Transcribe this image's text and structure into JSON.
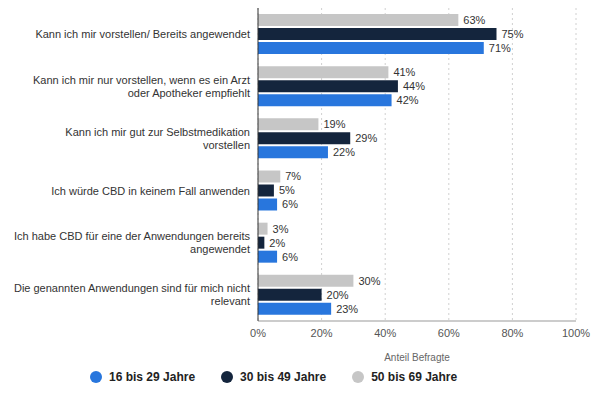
{
  "chart_data": {
    "type": "bar",
    "orientation": "horizontal",
    "categories": [
      "Kann ich mir vorstellen/ Bereits angewendet",
      "Kann ich mir nur vorstellen, wenn es ein Arzt oder Apotheker empfiehlt",
      "Kann ich mir gut zur Selbstmedikation vorstellen",
      "Ich würde CBD in keinem Fall anwenden",
      "Ich habe CBD für eine der Anwendungen bereits angewendet",
      "Die genannten Anwendungen sind für mich nicht relevant"
    ],
    "series": [
      {
        "name": "16 bis 29 Jahre",
        "color": "#2876dd",
        "values": [
          71,
          42,
          22,
          6,
          6,
          23
        ],
        "value_labels": [
          "71%",
          "42%",
          "22%",
          "6%",
          "6%",
          "23%"
        ]
      },
      {
        "name": "30 bis 49 Jahre",
        "color": "#14253d",
        "values": [
          75,
          44,
          29,
          5,
          2,
          20
        ],
        "value_labels": [
          "75%",
          "44%",
          "29%",
          "5%",
          "2%",
          "20%"
        ]
      },
      {
        "name": "50 bis 69 Jahre",
        "color": "#c6c6c6",
        "values": [
          63,
          41,
          19,
          7,
          3,
          30
        ],
        "value_labels": [
          "63%",
          "41%",
          "19%",
          "7%",
          "3%",
          "30%"
        ]
      }
    ],
    "x_label": "Anteil Befragte",
    "xlim": [
      0,
      100
    ],
    "xticks": [
      {
        "value": 0,
        "label": "0%"
      },
      {
        "value": 20,
        "label": "20%"
      },
      {
        "value": 40,
        "label": "40%"
      },
      {
        "value": 60,
        "label": "60%"
      },
      {
        "value": 80,
        "label": "80%"
      },
      {
        "value": 100,
        "label": "100%"
      }
    ],
    "grid": true,
    "data_labels": true,
    "legend": "bottom"
  }
}
